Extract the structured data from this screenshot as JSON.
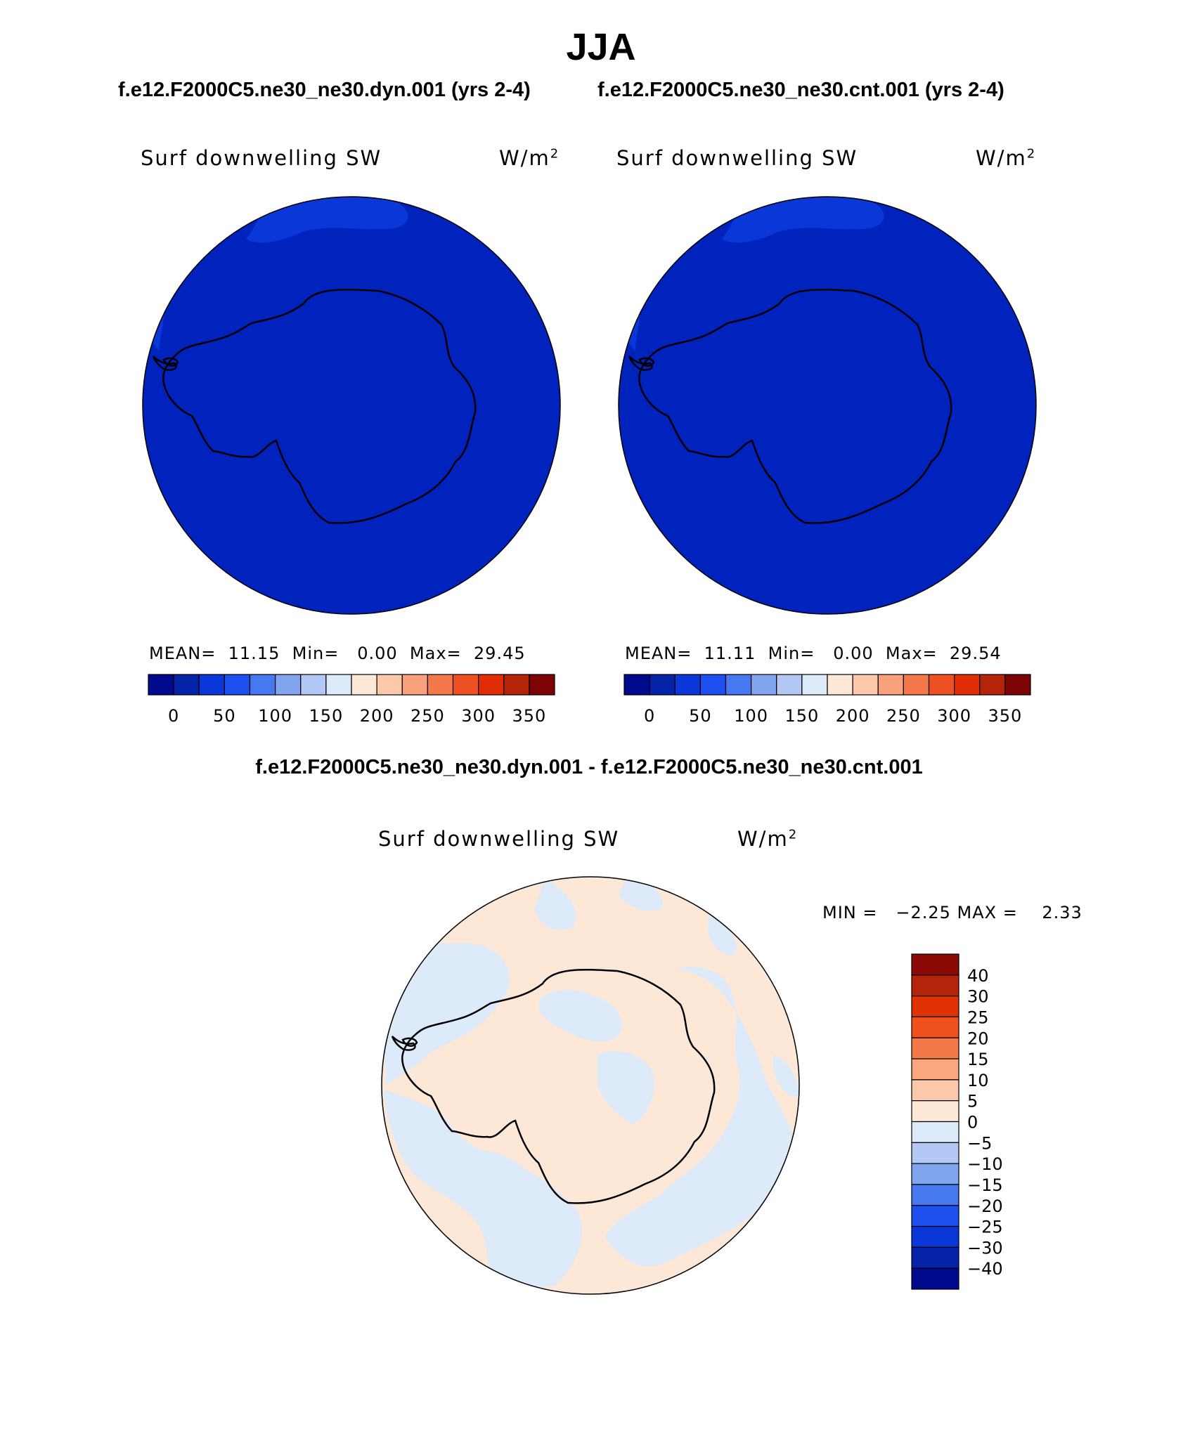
{
  "title": "JJA",
  "case_titles": {
    "left": "f.e12.F2000C5.ne30_ne30.dyn.001 (yrs 2-4)",
    "right": "f.e12.F2000C5.ne30_ne30.cnt.001 (yrs 2-4)"
  },
  "panels": [
    {
      "variable": "Surf downwelling SW",
      "units_base": "W/m",
      "units_sup": "2",
      "mean_label": "MEAN=",
      "mean": "11.15",
      "min_label": "Min=",
      "min": "0.00",
      "max_label": "Max=",
      "max": "29.45"
    },
    {
      "variable": "Surf downwelling SW",
      "units_base": "W/m",
      "units_sup": "2",
      "mean_label": "MEAN=",
      "mean": "11.11",
      "min_label": "Min=",
      "min": "0.00",
      "max_label": "Max=",
      "max": "29.54"
    }
  ],
  "colorbar_top": {
    "colors": [
      "#000a8c",
      "#0523a8",
      "#0a37d7",
      "#1e50f0",
      "#4678f0",
      "#82a5f0",
      "#b4c8f5",
      "#dceafa",
      "#fde8d8",
      "#fcc8aa",
      "#f9a07c",
      "#f5784b",
      "#ee5023",
      "#e02d05",
      "#b4230a",
      "#7d0305"
    ],
    "tick_labels": [
      "0",
      "50",
      "100",
      "150",
      "200",
      "250",
      "300",
      "350"
    ]
  },
  "diff": {
    "title": "f.e12.F2000C5.ne30_ne30.dyn.001 - f.e12.F2000C5.ne30_ne30.cnt.001",
    "variable": "Surf downwelling SW",
    "units_base": "W/m",
    "units_sup": "2",
    "minmax_text": "MIN =   −2.25 MAX =    2.33",
    "colorbar": {
      "colors_top_to_bottom": [
        "#8c0a05",
        "#b4230a",
        "#e03205",
        "#f04f1e",
        "#f5784b",
        "#fca680",
        "#fcc8aa",
        "#fde8d8",
        "#dceafa",
        "#b4c8f5",
        "#82a5f0",
        "#4678f0",
        "#1e50f0",
        "#0a37d7",
        "#0523a8",
        "#000a8c"
      ],
      "labels": [
        "40",
        "30",
        "25",
        "20",
        "15",
        "10",
        "5",
        "0",
        "−5",
        "−10",
        "−15",
        "−20",
        "−25",
        "−30",
        "−40"
      ]
    }
  },
  "colors": {
    "map_base": "#0023bd",
    "map_light": "#0a37d7",
    "diff_pos": "#fde8d8",
    "diff_neg": "#dceafa"
  }
}
